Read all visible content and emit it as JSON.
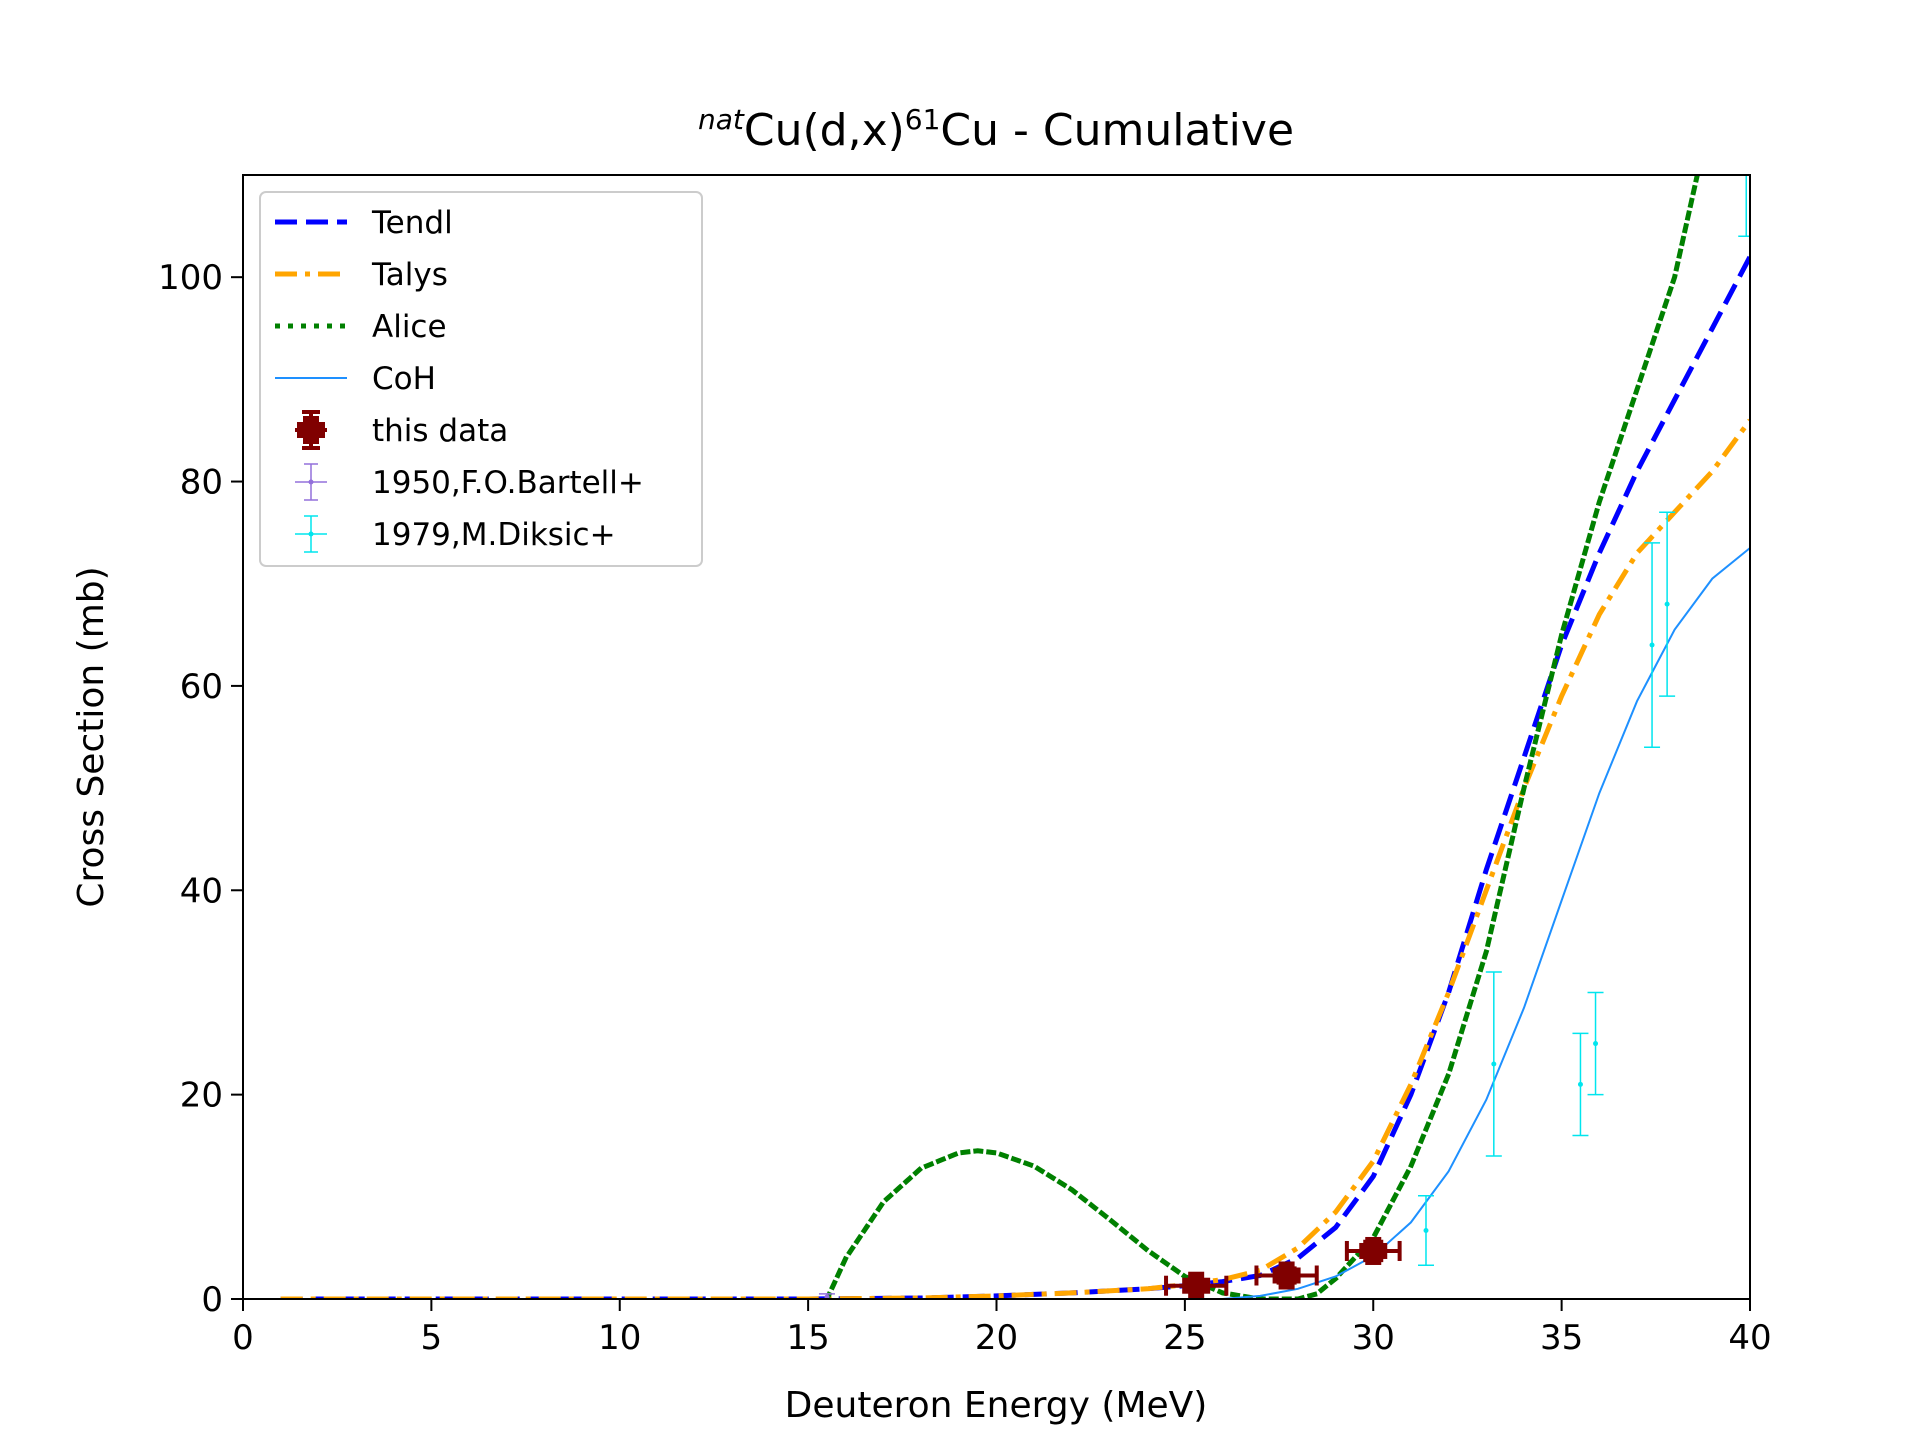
{
  "chart_data": {
    "type": "line",
    "title": {
      "prefix": "nat",
      "base": "Cu(d,x)",
      "mass": "61",
      "suffix": "Cu - Cumulative"
    },
    "xlabel": "Deuteron Energy (MeV)",
    "ylabel": "Cross Section (mb)",
    "xlim": [
      0,
      40
    ],
    "ylim": [
      0,
      110
    ],
    "xticks": [
      "0",
      "5",
      "10",
      "15",
      "20",
      "25",
      "30",
      "35",
      "40"
    ],
    "yticks": [
      "0",
      "20",
      "40",
      "60",
      "80",
      "100"
    ],
    "grid": false,
    "legend_position": "upper-left",
    "series": [
      {
        "name": "Tendl",
        "style": "dashed",
        "color": "#0000ff",
        "x": [
          1,
          5,
          10,
          15,
          18,
          20,
          22,
          24,
          25,
          26,
          27,
          28,
          29,
          30,
          31,
          32,
          33,
          34,
          35,
          36,
          37,
          38,
          39,
          40
        ],
        "y": [
          0,
          0,
          0,
          0,
          0.1,
          0.3,
          0.6,
          1.0,
          1.3,
          1.7,
          2.3,
          4.0,
          7.0,
          12.0,
          20.0,
          30.0,
          42.0,
          53.0,
          64.0,
          73.0,
          81.0,
          88.0,
          95.0,
          102.0
        ]
      },
      {
        "name": "Talys",
        "style": "dashdot",
        "color": "#ffa500",
        "x": [
          1,
          5,
          10,
          15,
          18,
          20,
          22,
          24,
          25,
          26,
          27,
          28,
          29,
          30,
          31,
          32,
          33,
          34,
          35,
          36,
          37,
          38,
          39,
          40
        ],
        "y": [
          0,
          0,
          0,
          0,
          0.1,
          0.3,
          0.6,
          1.0,
          1.4,
          1.9,
          2.8,
          5.0,
          8.5,
          13.5,
          21.0,
          30.0,
          40.0,
          50.0,
          59.0,
          67.0,
          73.0,
          77.0,
          81.0,
          86.0
        ]
      },
      {
        "name": "Alice",
        "style": "dotted",
        "color": "#008000",
        "x": [
          15.5,
          16,
          17,
          18,
          19,
          19.5,
          20,
          21,
          22,
          23,
          24,
          25,
          26,
          27,
          28,
          28.5,
          29,
          30,
          31,
          32,
          33,
          34,
          35,
          36,
          37,
          38,
          38.6
        ],
        "y": [
          0,
          4.0,
          9.5,
          12.8,
          14.3,
          14.5,
          14.3,
          13.0,
          10.7,
          7.8,
          4.8,
          2.2,
          0.6,
          0,
          0,
          0.5,
          2.0,
          6.0,
          13.0,
          22.0,
          34.0,
          50.0,
          65.0,
          78.0,
          89.0,
          100.0,
          110.0
        ]
      },
      {
        "name": "CoH",
        "style": "solid",
        "color": "#1e90ff",
        "x": [
          26,
          27,
          28,
          29,
          30,
          31,
          32,
          33,
          34,
          35,
          36,
          37,
          38,
          39,
          40
        ],
        "y": [
          0,
          0.3,
          1.0,
          2.2,
          4.2,
          7.5,
          12.5,
          19.5,
          28.5,
          39.0,
          49.5,
          58.5,
          65.5,
          70.5,
          73.5
        ]
      }
    ],
    "measurements": [
      {
        "name": "this data",
        "color": "#800000",
        "marker": "plus",
        "points": [
          {
            "x": 25.3,
            "y": 1.3,
            "xerr": 0.8,
            "yerr": 0.5
          },
          {
            "x": 27.7,
            "y": 2.3,
            "xerr": 0.8,
            "yerr": 0.7
          },
          {
            "x": 30.0,
            "y": 4.7,
            "xerr": 0.7,
            "yerr": 0.9
          }
        ]
      },
      {
        "name": "1950,F.O.Bartell+",
        "color": "#9370db",
        "marker": "dot",
        "points": [
          {
            "x": 15.5,
            "y": 0.2,
            "xerr": 0,
            "yerr": 0.3
          }
        ]
      },
      {
        "name": "1979,M.Diksic+",
        "color": "#00e5ee",
        "marker": "dot",
        "points": [
          {
            "x": 31.4,
            "y": 6.7,
            "xerr": 0,
            "yerr": 3.4
          },
          {
            "x": 33.2,
            "y": 23.0,
            "xerr": 0,
            "yerr": 9.0
          },
          {
            "x": 35.5,
            "y": 21.0,
            "xerr": 0,
            "yerr": 5.0
          },
          {
            "x": 35.9,
            "y": 25.0,
            "xerr": 0,
            "yerr": 5.0
          },
          {
            "x": 37.4,
            "y": 64.0,
            "xerr": 0,
            "yerr": 10.0
          },
          {
            "x": 37.8,
            "y": 68.0,
            "xerr": 0,
            "yerr": 9.0
          },
          {
            "x": 39.9,
            "y": 112.0,
            "xerr": 0,
            "yerr": 8.0
          }
        ]
      }
    ]
  }
}
